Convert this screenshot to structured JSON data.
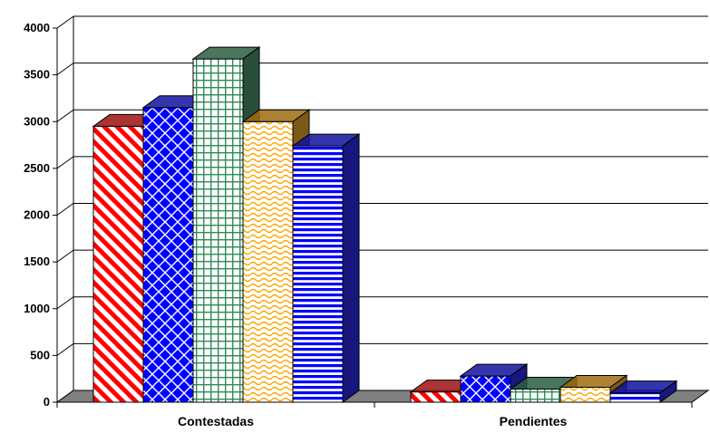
{
  "chart_data": {
    "type": "bar",
    "style": "3d-clustered-column",
    "categories": [
      "Contestadas",
      "Pendientes"
    ],
    "series": [
      {
        "values": [
          2950,
          110
        ],
        "color": "#ff0000",
        "pattern": "diagonal-stripes"
      },
      {
        "values": [
          3150,
          280
        ],
        "color": "#0000ff",
        "pattern": "diamond-checker"
      },
      {
        "values": [
          3670,
          140
        ],
        "color": "#2e8b57",
        "pattern": "grid"
      },
      {
        "values": [
          3000,
          160
        ],
        "color": "#ffa500",
        "pattern": "wave"
      },
      {
        "values": [
          2740,
          100
        ],
        "color": "#0000ff",
        "pattern": "horizontal-stripes"
      }
    ],
    "y_ticks": [
      "0",
      "500",
      "1000",
      "1500",
      "2000",
      "2500",
      "3000",
      "3500",
      "4000"
    ],
    "ylim": [
      0,
      4000
    ],
    "grid": true,
    "legend": "none",
    "title": "",
    "xlabel": "",
    "ylabel": ""
  }
}
